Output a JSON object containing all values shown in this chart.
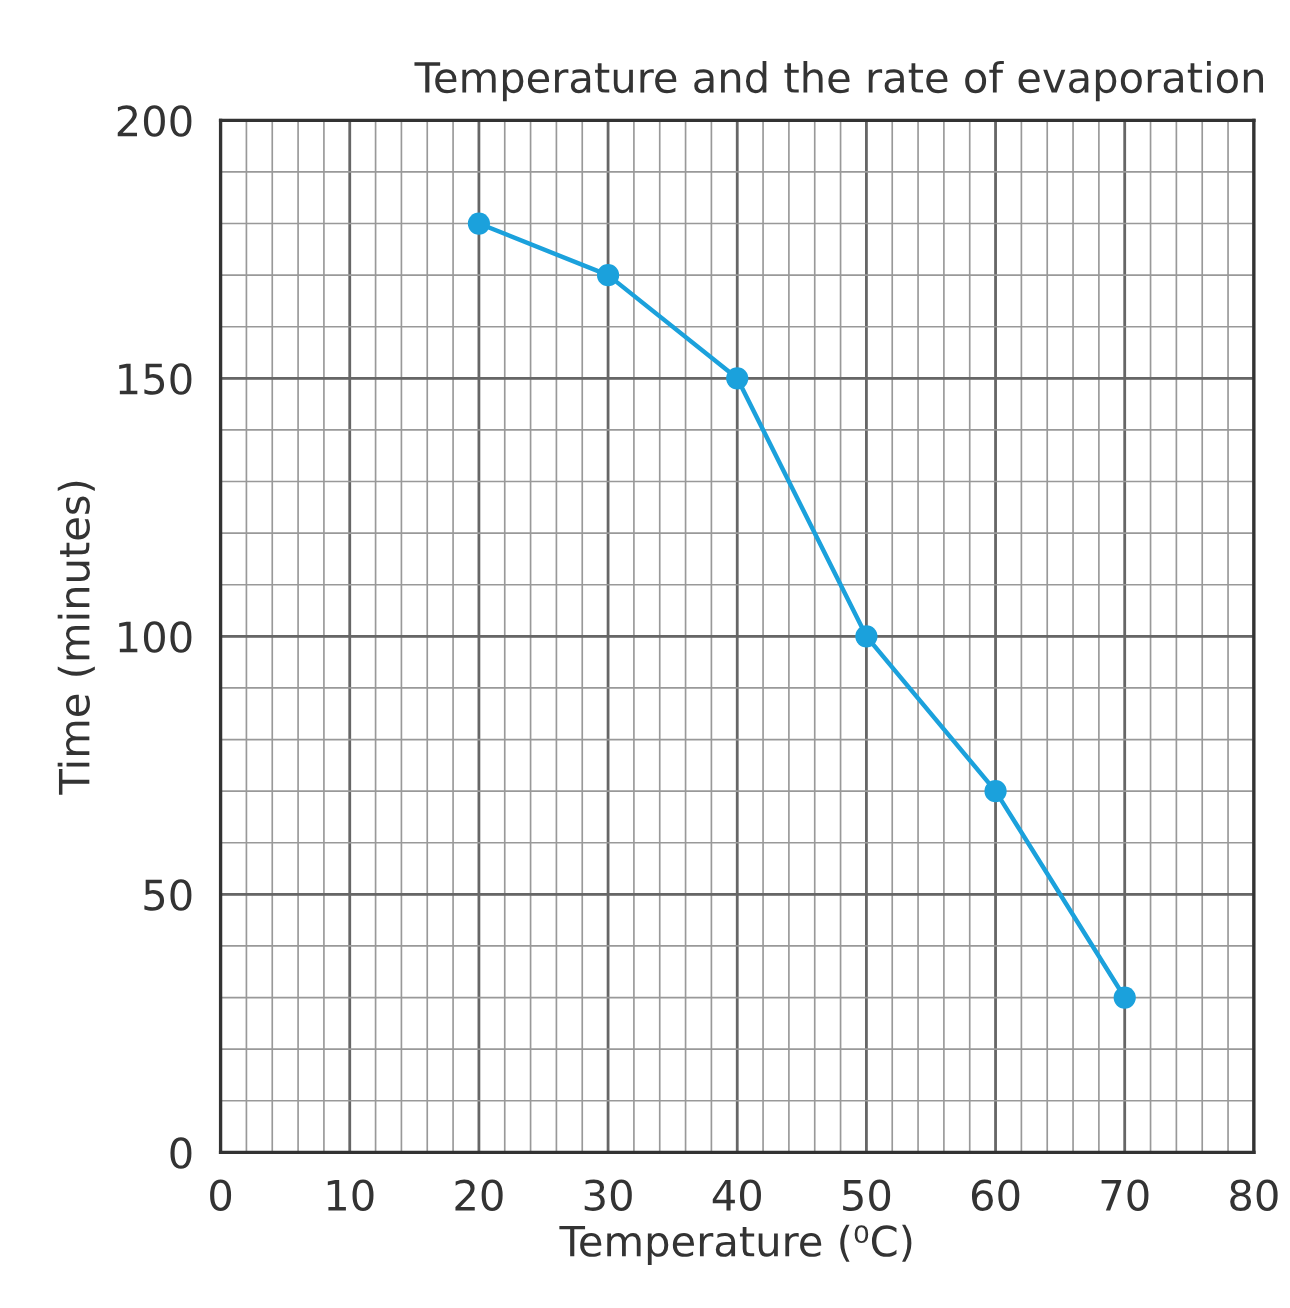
{
  "chart_data": {
    "type": "line",
    "title": "Temperature and the rate of evaporation",
    "xlabel": "Temperature (⁰C)",
    "ylabel": "Time (minutes)",
    "x": [
      20,
      30,
      40,
      50,
      60,
      70
    ],
    "series": [
      {
        "color": "#1ba1dc",
        "values": [
          180,
          170,
          150,
          100,
          70,
          30
        ]
      }
    ],
    "xlim": [
      0,
      80
    ],
    "xticks": [
      0,
      10,
      20,
      30,
      40,
      50,
      60,
      70,
      80
    ],
    "ylim": [
      0,
      200
    ],
    "yticks": [
      0,
      50,
      100,
      150,
      200
    ],
    "grid": true,
    "marker": "circle",
    "line_style": "solid"
  }
}
